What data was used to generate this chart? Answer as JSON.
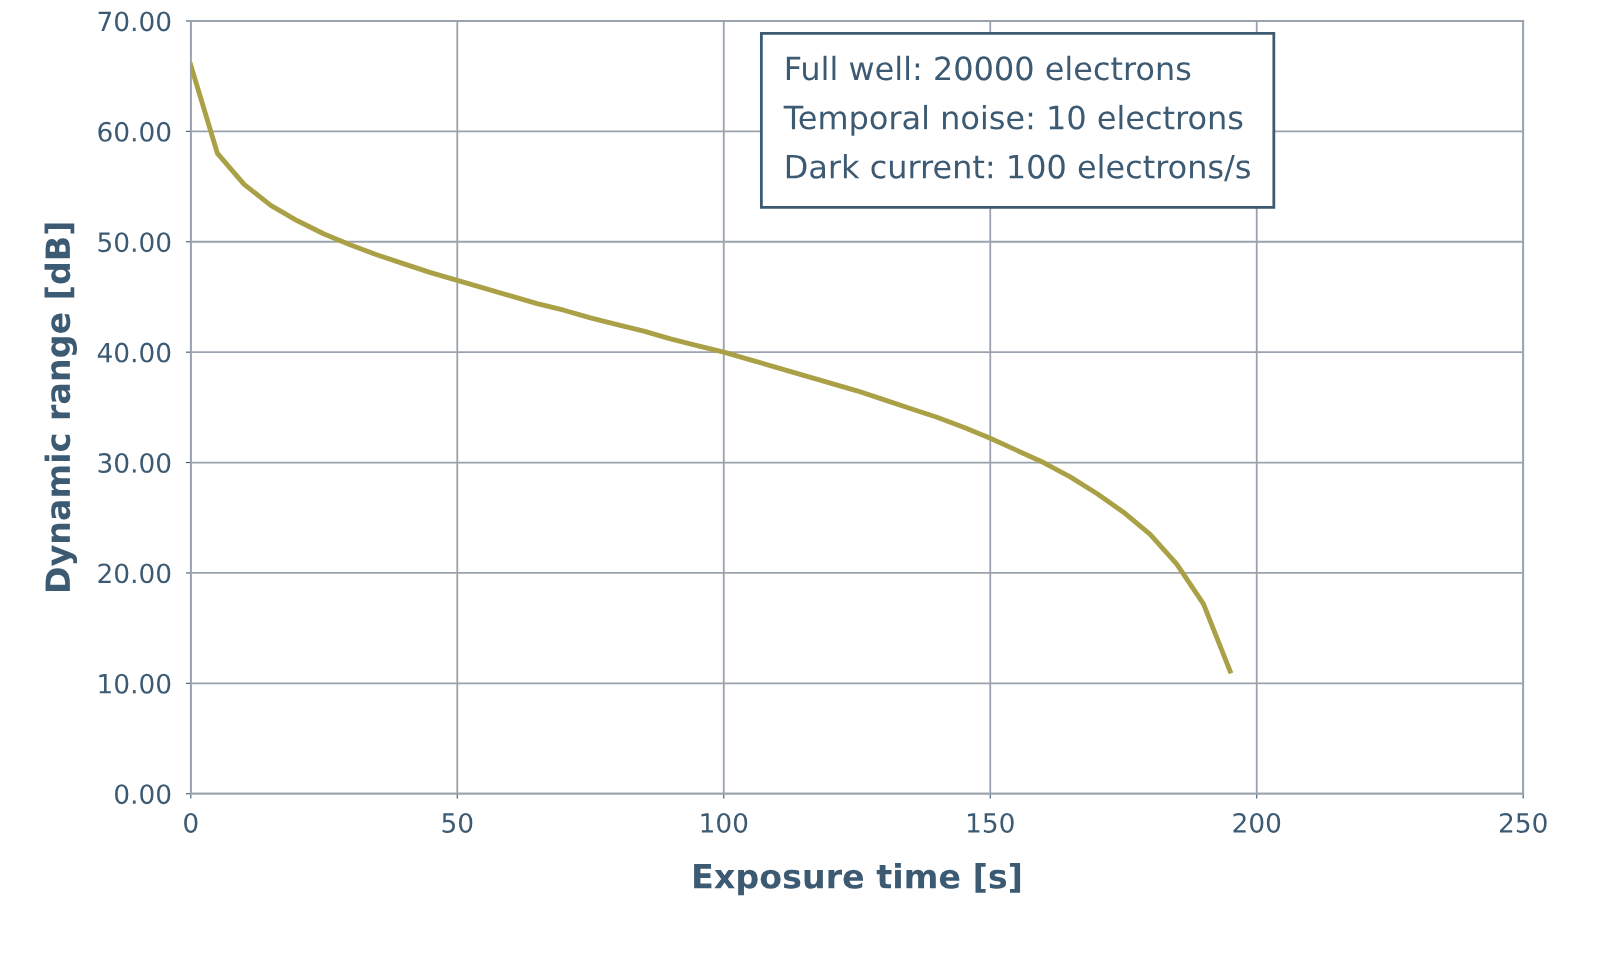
{
  "chart_data": {
    "type": "line",
    "xlabel": "Exposure time [s]",
    "ylabel": "Dynamic range [dB]",
    "x": [
      0,
      5,
      10,
      15,
      20,
      25,
      30,
      35,
      40,
      45,
      50,
      55,
      60,
      65,
      70,
      75,
      80,
      85,
      90,
      95,
      100,
      105,
      110,
      115,
      120,
      125,
      130,
      135,
      140,
      145,
      150,
      155,
      160,
      165,
      170,
      175,
      180,
      185,
      190,
      195
    ],
    "series": [
      {
        "color": "#aaa046",
        "values": [
          66.0,
          58.0,
          55.2,
          53.3,
          51.9,
          50.7,
          49.7,
          48.8,
          48.0,
          47.2,
          46.5,
          45.8,
          45.1,
          44.4,
          43.8,
          43.1,
          42.5,
          41.9,
          41.2,
          40.6,
          40.0,
          39.3,
          38.6,
          37.9,
          37.2,
          36.5,
          35.7,
          34.9,
          34.1,
          33.2,
          32.2,
          31.1,
          30.0,
          28.7,
          27.2,
          25.5,
          23.5,
          20.8,
          17.2,
          11.1
        ]
      }
    ],
    "xlim": [
      0,
      250
    ],
    "xticks": [
      0,
      50,
      100,
      150,
      200,
      250
    ],
    "ylim": [
      0,
      70
    ],
    "yticks": [
      {
        "value": 0,
        "label": "0.00"
      },
      {
        "value": 10,
        "label": "10.00"
      },
      {
        "value": 20,
        "label": "20.00"
      },
      {
        "value": 30,
        "label": "30.00"
      },
      {
        "value": 40,
        "label": "40.00"
      },
      {
        "value": 50,
        "label": "50.00"
      },
      {
        "value": 60,
        "label": "60.00"
      },
      {
        "value": 70,
        "label": "70.00"
      }
    ],
    "grid": true,
    "marker": "none",
    "line_style": "solid",
    "annotations": [
      "Full well: 20000 electrons",
      "Temporal noise: 10 electrons",
      "Dark current: 100 electrons/s"
    ]
  }
}
